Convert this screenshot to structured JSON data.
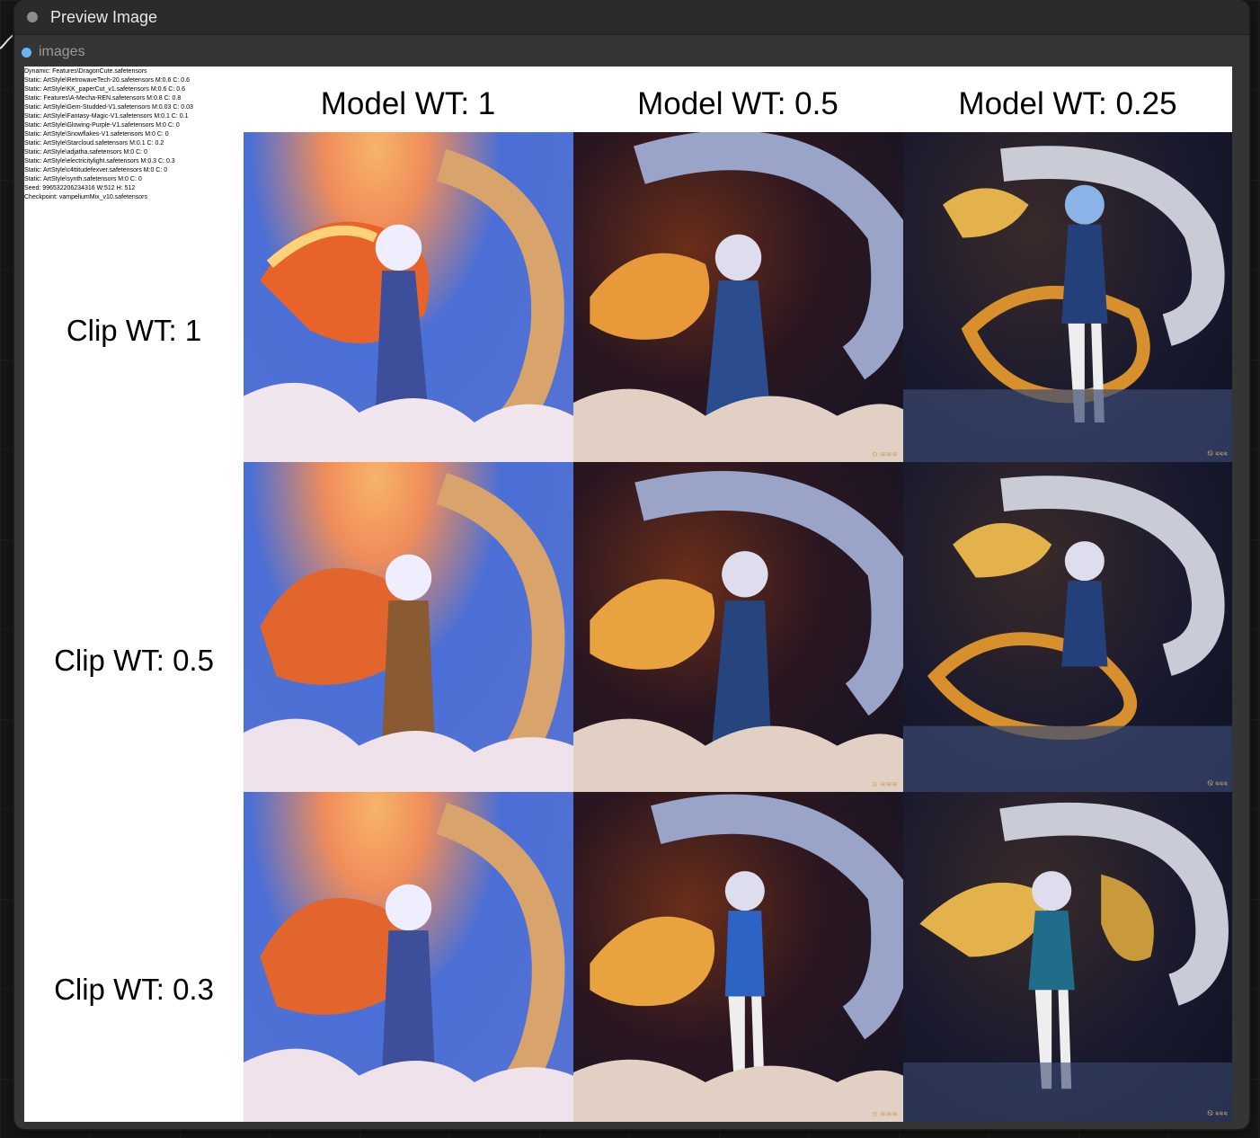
{
  "node": {
    "title": "Preview Image",
    "input_label": "images"
  },
  "info_lines": [
    "Dynamic: Features\\DragonCute.safetensors",
    "Static: ArtStyle\\RetrowaveTech-20.safetensors M:0.6 C: 0.6",
    "Static: ArtStyle\\KK_paperCut_v1.safetensors M:0.6 C: 0.6",
    "Static: Features\\A-Mecha-REN.safetensors M:0.8 C: 0.8",
    "Static: ArtStyle\\Gem-Studded-V1.safetensors M:0.03 C: 0.03",
    "Static: ArtStyle\\Fantasy-Magic-V1.safetensors M:0.1 C: 0.1",
    "Static: ArtStyle\\Glowing-Purple-V1.safetensors M:0 C: 0",
    "Static: ArtStyle\\Snowflakes-V1.safetensors M:0 C: 0",
    "Static: ArtStyle\\Starcloud.safetensors M:0.1 C: 0.2",
    "Static: ArtStyle\\adjatha.safetensors M:0 C: 0",
    "Static: ArtStyle\\electricitylight.safetensors M:0.3 C: 0.3",
    "Static: ArtStyle\\c4ttitudefexver.safetensors M:0 C: 0",
    "Static: ArtStyle\\synth.safetensors M:0 C: 0",
    "Seed: 996532206234316 W:512 H: 512",
    "Checkpoint: vampeliumMix_v10.safetensors"
  ],
  "columns": [
    "Model WT: 1",
    "Model WT: 0.5",
    "Model WT: 0.25"
  ],
  "rows": [
    "Clip WT: 1",
    "Clip WT: 0.5",
    "Clip WT: 0.3"
  ],
  "watermarks": {
    "mid": "⊙ ≋≋≋",
    "right": "Ꮻ ≋≋≋"
  },
  "colors": {
    "node_bg": "#353535",
    "header_bg": "#2b2b2b",
    "input_slot": "#64b5f6",
    "canvas_bg": "#161616"
  },
  "scene_descriptions_icons": [
    "dragon-image",
    "dragon-image",
    "dragon-image"
  ]
}
